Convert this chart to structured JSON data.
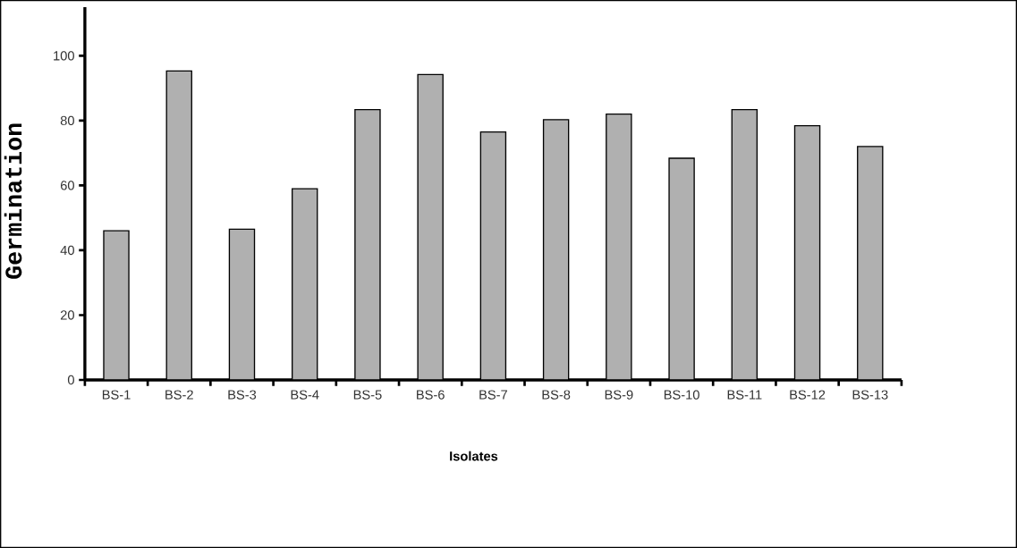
{
  "chart_data": {
    "type": "bar",
    "xlabel": "Isolates",
    "ylabel": "Germination",
    "categories": [
      "BS-1",
      "BS-2",
      "BS-3",
      "BS-4",
      "BS-5",
      "BS-6",
      "BS-7",
      "BS-8",
      "BS-9",
      "BS-10",
      "BS-11",
      "BS-12",
      "BS-13"
    ],
    "values": [
      46,
      95.3,
      46.5,
      59,
      83.4,
      94.2,
      76.5,
      80.3,
      82,
      68.4,
      83.4,
      78.4,
      72
    ],
    "color": "#b0b0b0",
    "ylim": [
      0,
      115
    ],
    "yticks": [
      0,
      20,
      40,
      60,
      80,
      100
    ],
    "grid": false
  }
}
